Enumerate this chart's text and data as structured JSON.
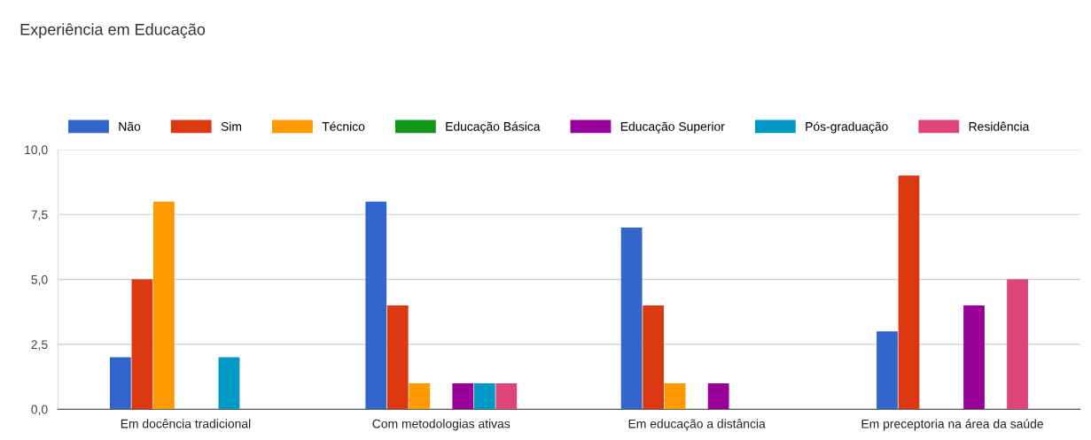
{
  "chart_data": {
    "type": "bar",
    "title": "Experiência em Educação",
    "categories": [
      "Em docência tradicional",
      "Com metodologias ativas",
      "Em educação a distância",
      "Em preceptoria na área da saúde"
    ],
    "series": [
      {
        "name": "Não",
        "color": "#3366cc",
        "values": [
          2,
          8,
          7,
          3
        ]
      },
      {
        "name": "Sim",
        "color": "#dc3912",
        "values": [
          5,
          4,
          4,
          9
        ]
      },
      {
        "name": "Técnico",
        "color": "#ff9900",
        "values": [
          8,
          1,
          1,
          0
        ]
      },
      {
        "name": "Educação Básica",
        "color": "#109618",
        "values": [
          0,
          0,
          0,
          0
        ]
      },
      {
        "name": "Educação Superior",
        "color": "#990099",
        "values": [
          0,
          1,
          1,
          4
        ]
      },
      {
        "name": "Pós-graduação",
        "color": "#0099c6",
        "values": [
          2,
          1,
          0,
          0
        ]
      },
      {
        "name": "Residência",
        "color": "#dd4477",
        "values": [
          0,
          1,
          0,
          5
        ]
      }
    ],
    "ylim": [
      0,
      10
    ],
    "yticks": [
      {
        "value": 0,
        "label": "0,0"
      },
      {
        "value": 2.5,
        "label": "2,5"
      },
      {
        "value": 5,
        "label": "5,0"
      },
      {
        "value": 7.5,
        "label": "7,5"
      },
      {
        "value": 10,
        "label": "10,0"
      }
    ],
    "grid": "y",
    "legend": "top"
  }
}
